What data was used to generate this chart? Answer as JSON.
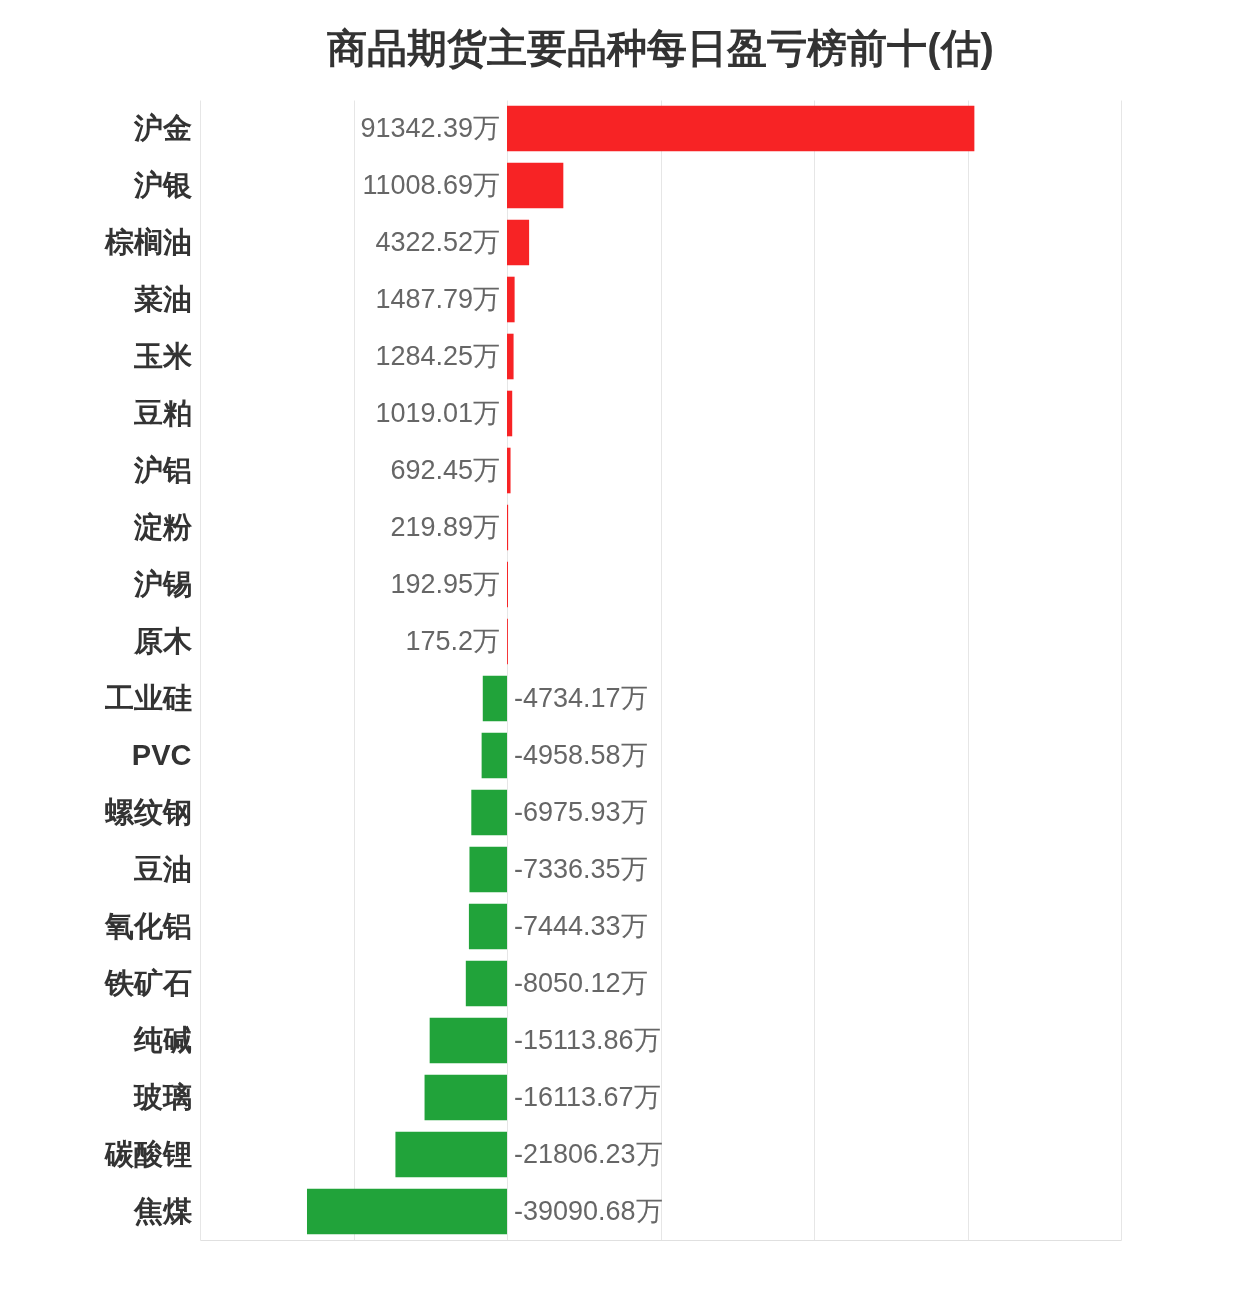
{
  "chart_data": {
    "type": "bar",
    "orientation": "horizontal",
    "title": "商品期货主要品种每日盈亏榜前十(估)",
    "categories": [
      "沪金",
      "沪银",
      "棕榈油",
      "菜油",
      "玉米",
      "豆粕",
      "沪铝",
      "淀粉",
      "沪锡",
      "原木",
      "工业硅",
      "PVC",
      "螺纹钢",
      "豆油",
      "氧化铝",
      "铁矿石",
      "纯碱",
      "玻璃",
      "碳酸锂",
      "焦煤"
    ],
    "values": [
      91342.39,
      11008.69,
      4322.52,
      1487.79,
      1284.25,
      1019.01,
      692.45,
      219.89,
      192.95,
      175.2,
      -4734.17,
      -4958.58,
      -6975.93,
      -7336.35,
      -7444.33,
      -8050.12,
      -15113.86,
      -16113.67,
      -21806.23,
      -39090.68
    ],
    "colors": [
      "#f72325",
      "#f72325",
      "#f72325",
      "#f72325",
      "#f72325",
      "#f72325",
      "#f72325",
      "#f72325",
      "#f72325",
      "#f72325",
      "#21a33a",
      "#21a33a",
      "#21a33a",
      "#21a33a",
      "#21a33a",
      "#21a33a",
      "#21a33a",
      "#21a33a",
      "#21a33a",
      "#21a33a"
    ],
    "value_labels": [
      "91342.39万",
      "11008.69万",
      "4322.52万",
      "1487.79万",
      "1284.25万",
      "1019.01万",
      "692.45万",
      "219.89万",
      "192.95万",
      "175.2万",
      "-4734.17万",
      "-4958.58万",
      "-6975.93万",
      "-7336.35万",
      "-7444.33万",
      "-8050.12万",
      "-15113.86万",
      "-16113.67万",
      "-21806.23万",
      "-39090.68万"
    ],
    "xlim": [
      -60000,
      120000
    ],
    "xticks": [
      {
        "value": -60000,
        "label": null
      },
      {
        "value": -30000,
        "label": null
      },
      {
        "value": 0,
        "label": null
      },
      {
        "value": 30000,
        "label": null
      },
      {
        "value": 60000,
        "label": null
      },
      {
        "value": 90000,
        "label": null
      },
      {
        "value": 120000,
        "label": null
      }
    ],
    "grid": "x",
    "tick_labels": "y"
  }
}
